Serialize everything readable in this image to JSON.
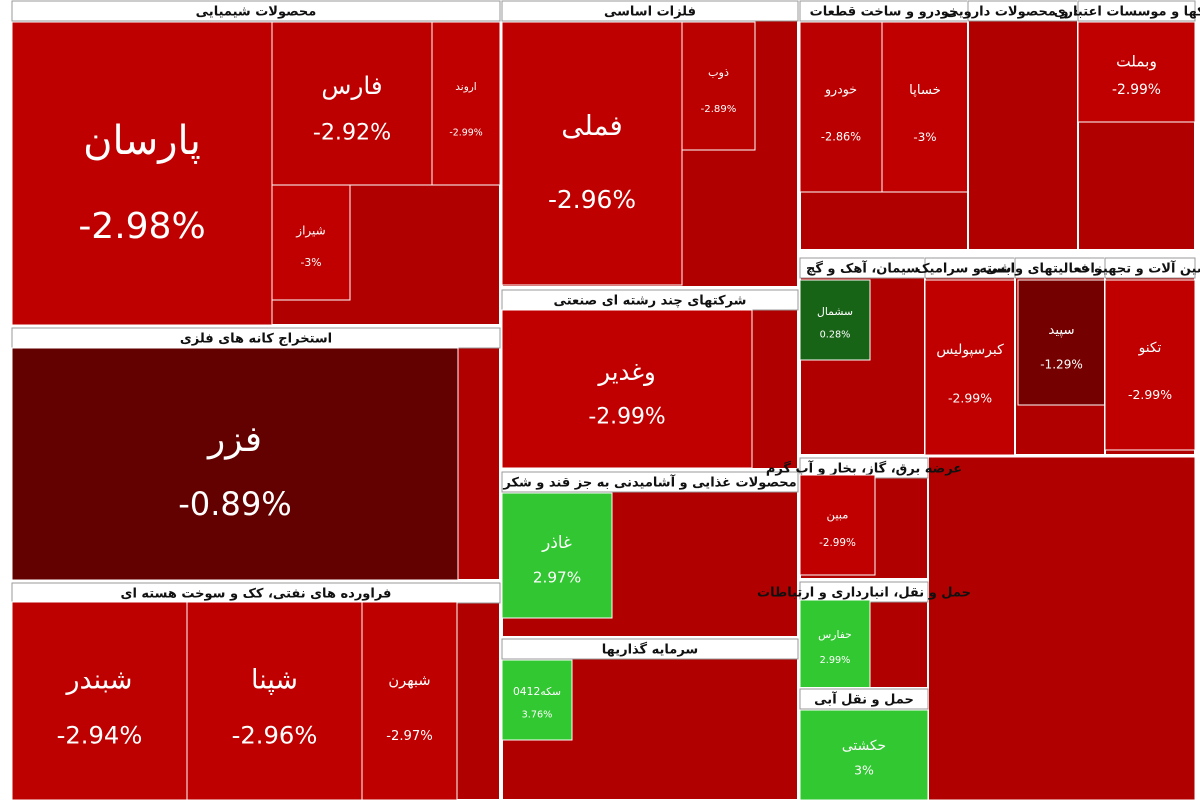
{
  "chart_data": {
    "type": "treemap",
    "sectors": [
      {
        "name": "محصولات شیمیایی",
        "categories": [
          "پارسان",
          "فارس",
          "اروند",
          "شیراز"
        ],
        "values": [
          -2.98,
          -2.92,
          -2.99,
          -3
        ],
        "value_labels": [
          "-2.98%",
          "-2.92%",
          "-2.99%",
          "-3%"
        ]
      },
      {
        "name": "فلزات اساسی",
        "categories": [
          "فملی",
          "ذوب"
        ],
        "values": [
          -2.96,
          -2.89
        ],
        "value_labels": [
          "-2.96%",
          "-2.89%"
        ]
      },
      {
        "name": "خودرو و ساخت قطعات",
        "categories": [
          "خودرو",
          "خساپا"
        ],
        "values": [
          -2.86,
          -3
        ],
        "value_labels": [
          "-2.86%",
          "-3%"
        ]
      },
      {
        "name": "مواد و محصولات دارویی",
        "categories": [],
        "values": [],
        "value_labels": []
      },
      {
        "name": "بانکها و موسسات اعتباری",
        "categories": [
          "وبملت"
        ],
        "values": [
          -2.99
        ],
        "value_labels": [
          "-2.99%"
        ]
      },
      {
        "name": "استخراج کانه های فلزی",
        "categories": [
          "فزر"
        ],
        "values": [
          -0.89
        ],
        "value_labels": [
          "-0.89%"
        ]
      },
      {
        "name": "شرکتهای چند رشته ای صنعتی",
        "categories": [
          "وغدیر"
        ],
        "values": [
          -2.99
        ],
        "value_labels": [
          "-2.99%"
        ]
      },
      {
        "name": "محصولات غذایی و آشامیدنی به جز قند و شکر",
        "categories": [
          "غاذر"
        ],
        "values": [
          2.97
        ],
        "value_labels": [
          "2.97%"
        ]
      },
      {
        "name": "فراورده های نفتی، کک و سوخت هسته ای",
        "categories": [
          "شبندر",
          "شپنا",
          "شبهرن"
        ],
        "values": [
          -2.94,
          -2.96,
          -2.97
        ],
        "value_labels": [
          "-2.94%",
          "-2.96%",
          "-2.97%"
        ]
      },
      {
        "name": "سرمایه گذاریها",
        "categories": [
          "سکه0412"
        ],
        "values": [
          3.76
        ],
        "value_labels": [
          "3.76%"
        ]
      },
      {
        "name": "سیمان، آهک و گچ",
        "categories": [
          "سشمال"
        ],
        "values": [
          0.28
        ],
        "value_labels": [
          "0.28%"
        ]
      },
      {
        "name": "کاشی و سرامیک",
        "categories": [
          "کبرسپولیس"
        ],
        "values": [
          -2.99
        ],
        "value_labels": [
          "-2.99%"
        ]
      },
      {
        "name": "رایانه و فعالیتهای وابسته",
        "categories": [
          "سپید"
        ],
        "values": [
          -1.29
        ],
        "value_labels": [
          "-1.29%"
        ]
      },
      {
        "name": "ماشین آلات و تجهیزات",
        "categories": [
          "تکنو"
        ],
        "values": [
          -2.99
        ],
        "value_labels": [
          "-2.99%"
        ]
      },
      {
        "name": "عرضه برق، گاز، بخار و آب گرم",
        "categories": [
          "مبین"
        ],
        "values": [
          -2.99
        ],
        "value_labels": [
          "-2.99%"
        ]
      },
      {
        "name": "حمل و نقل، انبارداری و ارتباطات",
        "categories": [
          "حفارس"
        ],
        "values": [
          2.99
        ],
        "value_labels": [
          "2.99%"
        ]
      },
      {
        "name": "حمل و نقل آبی",
        "categories": [
          "حکشتی"
        ],
        "values": [
          3
        ],
        "value_labels": [
          "3%"
        ]
      }
    ]
  }
}
